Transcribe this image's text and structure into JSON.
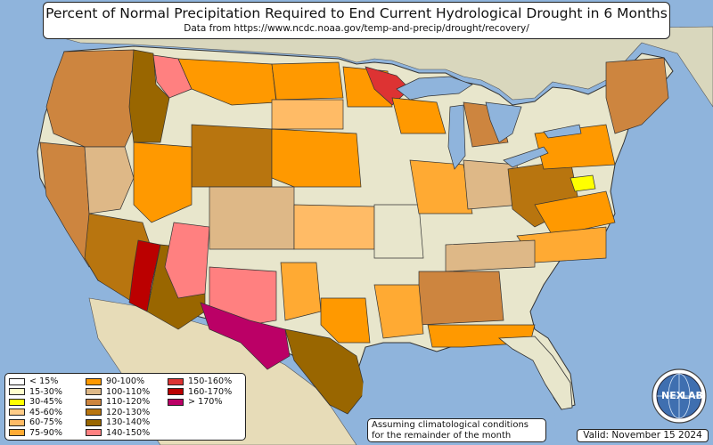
{
  "title": "Percent of Normal Precipitation Required to End Current Hydrological Drought in 6 Months",
  "subtitle": "Data from https://www.ncdc.noaa.gov/temp-and-precip/drought/recovery/",
  "legend": [
    {
      "label": "< 15%",
      "color": "#ffffff"
    },
    {
      "label": "15-30%",
      "color": "#ffffcc"
    },
    {
      "label": "30-45%",
      "color": "#ffff00"
    },
    {
      "label": "45-60%",
      "color": "#ffcc88"
    },
    {
      "label": "60-75%",
      "color": "#ffbb66"
    },
    {
      "label": "75-90%",
      "color": "#ffaa33"
    },
    {
      "label": "90-100%",
      "color": "#ff9900"
    },
    {
      "label": "100-110%",
      "color": "#deb887"
    },
    {
      "label": "110-120%",
      "color": "#cd853f"
    },
    {
      "label": "120-130%",
      "color": "#b8750f"
    },
    {
      "label": "130-140%",
      "color": "#996600"
    },
    {
      "label": "140-150%",
      "color": "#ff8080"
    },
    {
      "label": "150-160%",
      "color": "#dd3333"
    },
    {
      "label": "160-170%",
      "color": "#bb0000"
    },
    {
      "label": "> 170%",
      "color": "#bb0066"
    }
  ],
  "note": {
    "line1": "Assuming climatological conditions",
    "line2": "for the remainder of the month"
  },
  "valid": "Valid: November 15 2024",
  "logo": {
    "text": "NEXLAB",
    "part1": "NEX",
    "part2": "LAB",
    "icon": "globe-logo-icon"
  },
  "colors": {
    "ocean": "#8fb4dc",
    "land": "#e9e4c8",
    "border": "#333333"
  }
}
